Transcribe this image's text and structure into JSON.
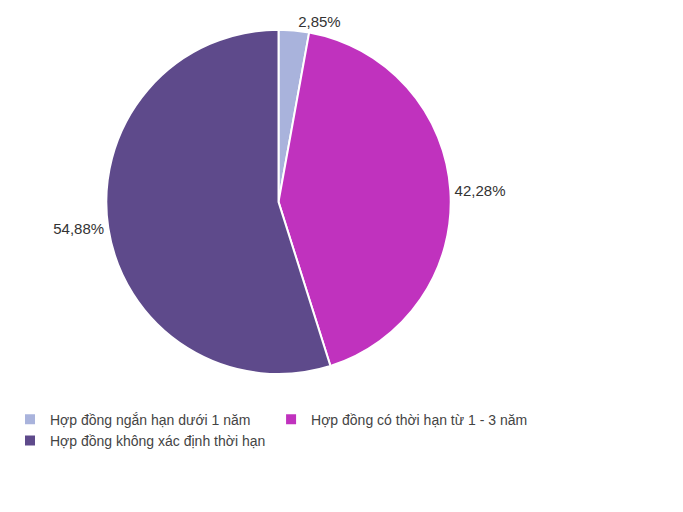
{
  "chart_data": {
    "type": "pie",
    "categories": [
      "Hợp đồng ngắn hạn dưới 1 năm",
      "Hợp đồng có thời hạn từ 1 - 3 năm",
      "Hợp đồng không xác định thời hạn"
    ],
    "values": [
      2.85,
      42.28,
      54.88
    ],
    "value_labels": [
      "2,85%",
      "42,28%",
      "54,88%"
    ],
    "colors": [
      "#a9b3dc",
      "#c032be",
      "#5e4a8b"
    ],
    "data_labels": true,
    "legend": "bottom"
  }
}
